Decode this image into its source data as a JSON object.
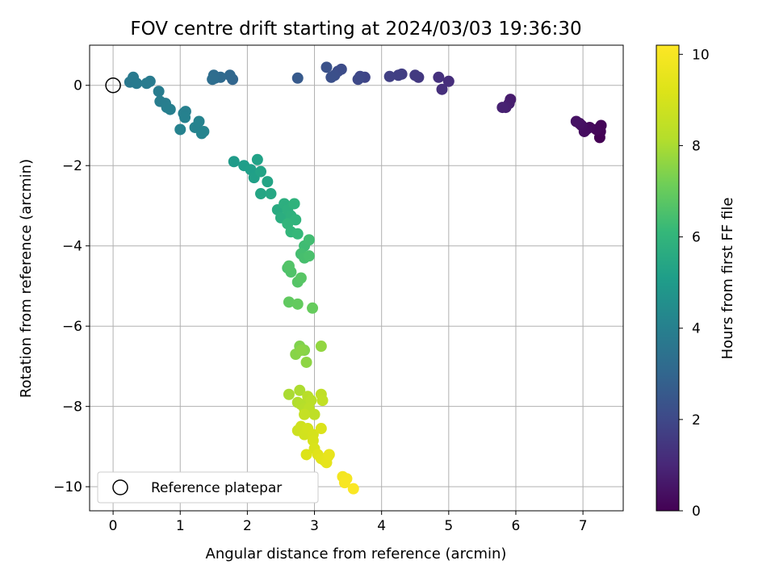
{
  "chart_data": {
    "type": "scatter",
    "title": "FOV centre drift starting at 2024/03/03 19:36:30",
    "xlabel": "Angular distance from reference (arcmin)",
    "ylabel": "Rotation from reference (arcmin)",
    "xlim": [
      -0.35,
      7.6
    ],
    "ylim": [
      -10.6,
      1.0
    ],
    "xticks": [
      "0",
      "1",
      "2",
      "3",
      "4",
      "5",
      "6",
      "7"
    ],
    "yticks": [
      "0",
      "−2",
      "−4",
      "−6",
      "−8",
      "−10"
    ],
    "grid": true,
    "legend": {
      "position": "lower-left",
      "entries": [
        "Reference platepar"
      ]
    },
    "reference_point": {
      "x": 0,
      "y": 0
    },
    "colorbar": {
      "label": "Hours from first FF file",
      "colormap": "viridis",
      "range": [
        0,
        10.2
      ],
      "ticks": [
        "0",
        "2",
        "4",
        "6",
        "8",
        "10"
      ]
    },
    "points": [
      [
        7.25,
        -1.3,
        0.0
      ],
      [
        7.26,
        -1.15,
        0.05
      ],
      [
        7.27,
        -1.0,
        0.1
      ],
      [
        7.2,
        -1.1,
        0.15
      ],
      [
        7.1,
        -1.05,
        0.2
      ],
      [
        7.05,
        -1.1,
        0.25
      ],
      [
        7.02,
        -1.15,
        0.3
      ],
      [
        6.98,
        -1.0,
        0.35
      ],
      [
        6.95,
        -0.95,
        0.4
      ],
      [
        6.9,
        -0.9,
        0.45
      ],
      [
        5.92,
        -0.35,
        0.7
      ],
      [
        5.9,
        -0.45,
        0.75
      ],
      [
        5.85,
        -0.55,
        0.8
      ],
      [
        5.8,
        -0.55,
        0.85
      ],
      [
        5.0,
        0.1,
        1.2
      ],
      [
        4.9,
        -0.1,
        1.25
      ],
      [
        4.85,
        0.2,
        1.3
      ],
      [
        4.55,
        0.2,
        1.5
      ],
      [
        4.5,
        0.25,
        1.55
      ],
      [
        4.3,
        0.28,
        1.65
      ],
      [
        4.25,
        0.25,
        1.7
      ],
      [
        4.12,
        0.22,
        1.75
      ],
      [
        3.75,
        0.2,
        1.9
      ],
      [
        3.68,
        0.22,
        1.95
      ],
      [
        3.65,
        0.15,
        2.0
      ],
      [
        3.4,
        0.4,
        2.1
      ],
      [
        3.35,
        0.35,
        2.15
      ],
      [
        3.3,
        0.25,
        2.2
      ],
      [
        3.25,
        0.2,
        2.25
      ],
      [
        3.18,
        0.45,
        2.3
      ],
      [
        2.75,
        0.18,
        2.6
      ],
      [
        1.78,
        0.15,
        3.0
      ],
      [
        1.74,
        0.25,
        3.05
      ],
      [
        1.6,
        0.2,
        3.15
      ],
      [
        1.52,
        0.18,
        3.2
      ],
      [
        1.5,
        0.25,
        3.25
      ],
      [
        1.48,
        0.15,
        3.3
      ],
      [
        0.25,
        0.08,
        3.7
      ],
      [
        0.3,
        0.2,
        3.75
      ],
      [
        0.35,
        0.05,
        3.78
      ],
      [
        0.5,
        0.05,
        3.8
      ],
      [
        0.55,
        0.1,
        3.82
      ],
      [
        0.68,
        -0.15,
        3.85
      ],
      [
        0.7,
        -0.4,
        3.88
      ],
      [
        0.78,
        -0.45,
        3.9
      ],
      [
        0.8,
        -0.55,
        3.92
      ],
      [
        0.85,
        -0.6,
        3.95
      ],
      [
        1.05,
        -0.7,
        4.0
      ],
      [
        1.08,
        -0.65,
        4.02
      ],
      [
        1.07,
        -0.8,
        4.05
      ],
      [
        1.0,
        -1.1,
        4.08
      ],
      [
        1.22,
        -1.05,
        4.1
      ],
      [
        1.28,
        -0.9,
        4.12
      ],
      [
        1.35,
        -1.15,
        4.15
      ],
      [
        1.32,
        -1.2,
        4.17
      ],
      [
        1.8,
        -1.9,
        5.0
      ],
      [
        1.95,
        -2.0,
        5.1
      ],
      [
        2.05,
        -2.1,
        5.15
      ],
      [
        2.1,
        -2.3,
        5.2
      ],
      [
        2.15,
        -1.85,
        5.25
      ],
      [
        2.2,
        -2.15,
        5.3
      ],
      [
        2.3,
        -2.4,
        5.35
      ],
      [
        2.2,
        -2.7,
        5.4
      ],
      [
        2.35,
        -2.7,
        5.45
      ],
      [
        2.45,
        -3.1,
        5.6
      ],
      [
        2.5,
        -3.3,
        5.7
      ],
      [
        2.55,
        -2.95,
        5.75
      ],
      [
        2.6,
        -3.1,
        5.8
      ],
      [
        2.65,
        -3.25,
        5.85
      ],
      [
        2.7,
        -2.95,
        5.9
      ],
      [
        2.72,
        -3.35,
        5.95
      ],
      [
        2.6,
        -3.45,
        6.0
      ],
      [
        2.65,
        -3.65,
        6.05
      ],
      [
        2.75,
        -3.7,
        6.1
      ],
      [
        2.85,
        -4.0,
        6.3
      ],
      [
        2.92,
        -3.85,
        6.35
      ],
      [
        2.8,
        -4.2,
        6.4
      ],
      [
        2.85,
        -4.3,
        6.45
      ],
      [
        2.92,
        -4.25,
        6.5
      ],
      [
        2.6,
        -4.55,
        6.55
      ],
      [
        2.65,
        -4.65,
        6.6
      ],
      [
        2.62,
        -4.5,
        6.65
      ],
      [
        2.75,
        -4.9,
        6.7
      ],
      [
        2.8,
        -4.8,
        6.75
      ],
      [
        2.62,
        -5.4,
        6.9
      ],
      [
        2.75,
        -5.45,
        6.95
      ],
      [
        2.97,
        -5.55,
        7.0
      ],
      [
        2.78,
        -6.5,
        7.4
      ],
      [
        2.85,
        -6.6,
        7.45
      ],
      [
        2.72,
        -6.7,
        7.5
      ],
      [
        2.8,
        -6.6,
        7.55
      ],
      [
        2.88,
        -6.9,
        7.6
      ],
      [
        3.1,
        -6.5,
        7.65
      ],
      [
        2.62,
        -7.7,
        8.0
      ],
      [
        2.78,
        -7.6,
        8.05
      ],
      [
        2.75,
        -7.9,
        8.1
      ],
      [
        2.8,
        -7.95,
        8.15
      ],
      [
        2.85,
        -8.05,
        8.2
      ],
      [
        2.9,
        -7.75,
        8.25
      ],
      [
        2.95,
        -7.85,
        8.3
      ],
      [
        2.92,
        -8.05,
        8.35
      ],
      [
        3.0,
        -8.2,
        8.4
      ],
      [
        3.1,
        -7.7,
        8.45
      ],
      [
        3.12,
        -7.85,
        8.5
      ],
      [
        2.85,
        -8.2,
        8.55
      ],
      [
        2.75,
        -8.6,
        8.8
      ],
      [
        2.8,
        -8.5,
        8.85
      ],
      [
        2.85,
        -8.7,
        8.9
      ],
      [
        2.9,
        -8.55,
        8.95
      ],
      [
        2.98,
        -8.7,
        9.0
      ],
      [
        2.98,
        -8.85,
        9.05
      ],
      [
        3.0,
        -9.05,
        9.1
      ],
      [
        3.1,
        -8.55,
        9.15
      ],
      [
        2.88,
        -9.2,
        9.2
      ],
      [
        3.05,
        -9.2,
        9.3
      ],
      [
        3.1,
        -9.3,
        9.35
      ],
      [
        3.15,
        -9.35,
        9.4
      ],
      [
        3.2,
        -9.25,
        9.45
      ],
      [
        3.18,
        -9.4,
        9.5
      ],
      [
        3.22,
        -9.2,
        9.55
      ],
      [
        3.42,
        -9.75,
        9.9
      ],
      [
        3.48,
        -9.8,
        9.95
      ],
      [
        3.45,
        -9.9,
        10.0
      ],
      [
        3.58,
        -10.05,
        10.1
      ]
    ]
  }
}
